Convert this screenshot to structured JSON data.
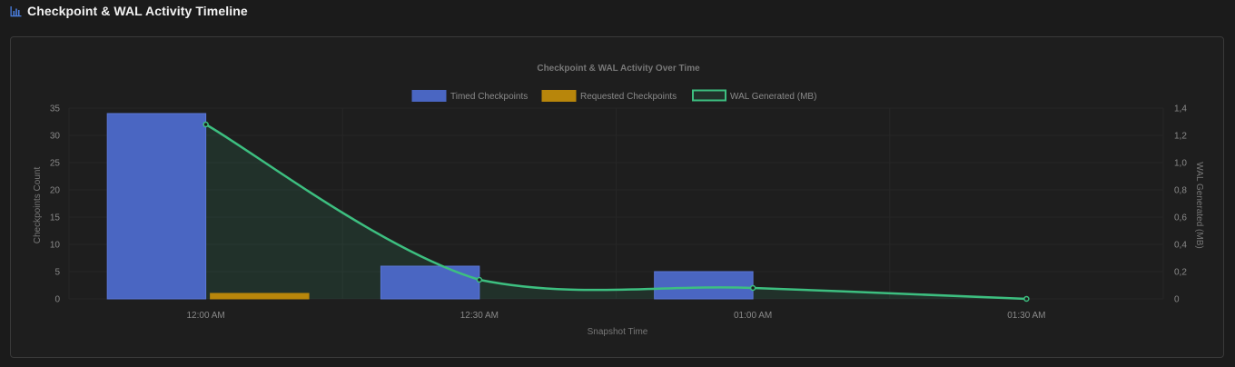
{
  "header": {
    "title": "Checkpoint & WAL Activity Timeline",
    "icon": "bar-chart-icon"
  },
  "colors": {
    "timed": "#4a66c2",
    "requested": "#b8860b",
    "wal": "#3dbf80",
    "wal_fill": "rgba(61,191,128,0.12)"
  },
  "chart_data": {
    "type": "bar",
    "title": "Checkpoint & WAL Activity Over Time",
    "categories": [
      "12:00 AM",
      "12:30 AM",
      "01:00 AM",
      "01:30 AM"
    ],
    "xlabel": "Snapshot Time",
    "ylabel": "Checkpoints Count",
    "y2label": "WAL Generated (MB)",
    "ylim": [
      0,
      35
    ],
    "y2lim": [
      0,
      1.4
    ],
    "yticks": [
      "0",
      "5",
      "10",
      "15",
      "20",
      "25",
      "30",
      "35"
    ],
    "y2ticks": [
      "0",
      "0,2",
      "0,4",
      "0,6",
      "0,8",
      "1,0",
      "1,2",
      "1,4"
    ],
    "legend_position": "top-center",
    "series": [
      {
        "name": "Timed Checkpoints",
        "kind": "bar",
        "values": [
          34,
          6,
          5,
          0
        ]
      },
      {
        "name": "Requested Checkpoints",
        "kind": "bar",
        "values": [
          1,
          0,
          0,
          0
        ]
      },
      {
        "name": "WAL Generated (MB)",
        "kind": "line",
        "axis": "right",
        "values": [
          1.28,
          0.14,
          0.08,
          0.0
        ]
      }
    ]
  }
}
